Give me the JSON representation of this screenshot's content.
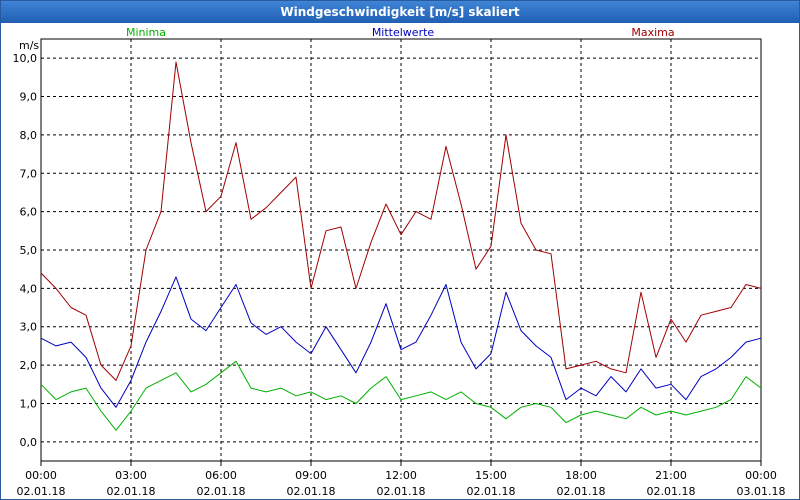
{
  "window": {
    "title": "Windgeschwindigkeit [m/s] skaliert"
  },
  "colors": {
    "minima": "#00b000",
    "mittelwerte": "#0000c0",
    "maxima": "#a00000",
    "grid": "#000000"
  },
  "chart_data": {
    "type": "line",
    "title": "Windgeschwindigkeit [m/s] skaliert",
    "ylabel": "m/s",
    "xlabel": "",
    "ylim": [
      -0.5,
      10.5
    ],
    "xlim": [
      0,
      24
    ],
    "grid": true,
    "legend": "top",
    "y_ticks": [
      "0,0",
      "1,0",
      "2,0",
      "3,0",
      "4,0",
      "5,0",
      "6,0",
      "7,0",
      "8,0",
      "9,0",
      "10,0"
    ],
    "x_ticks": [
      {
        "time": "00:00",
        "date": "02.01.18"
      },
      {
        "time": "03:00",
        "date": "02.01.18"
      },
      {
        "time": "06:00",
        "date": "02.01.18"
      },
      {
        "time": "09:00",
        "date": "02.01.18"
      },
      {
        "time": "12:00",
        "date": "02.01.18"
      },
      {
        "time": "15:00",
        "date": "02.01.18"
      },
      {
        "time": "18:00",
        "date": "02.01.18"
      },
      {
        "time": "21:00",
        "date": "02.01.18"
      },
      {
        "time": "00:00",
        "date": "03.01.18"
      }
    ],
    "x": [
      0.0,
      0.5,
      1.0,
      1.5,
      2.0,
      2.5,
      3.0,
      3.5,
      4.0,
      4.5,
      5.0,
      5.5,
      6.0,
      6.5,
      7.0,
      7.5,
      8.0,
      8.5,
      9.0,
      9.5,
      10.0,
      10.5,
      11.0,
      11.5,
      12.0,
      12.5,
      13.0,
      13.5,
      14.0,
      14.5,
      15.0,
      15.5,
      16.0,
      16.5,
      17.0,
      17.5,
      18.0,
      18.5,
      19.0,
      19.5,
      20.0,
      20.5,
      21.0,
      21.5,
      22.0,
      22.5,
      23.0,
      23.5,
      24.0
    ],
    "series": [
      {
        "name": "Minima",
        "values": [
          1.5,
          1.1,
          1.3,
          1.4,
          0.8,
          0.3,
          0.8,
          1.4,
          1.6,
          1.8,
          1.3,
          1.5,
          1.8,
          2.1,
          1.4,
          1.3,
          1.4,
          1.2,
          1.3,
          1.1,
          1.2,
          1.0,
          1.4,
          1.7,
          1.1,
          1.2,
          1.3,
          1.1,
          1.3,
          1.0,
          0.9,
          0.6,
          0.9,
          1.0,
          0.9,
          0.5,
          0.7,
          0.8,
          0.7,
          0.6,
          0.9,
          0.7,
          0.8,
          0.7,
          0.8,
          0.9,
          1.1,
          1.7,
          1.4
        ]
      },
      {
        "name": "Mittelwerte",
        "values": [
          2.7,
          2.5,
          2.6,
          2.2,
          1.4,
          0.9,
          1.6,
          2.6,
          3.4,
          4.3,
          3.2,
          2.9,
          3.5,
          4.1,
          3.1,
          2.8,
          3.0,
          2.6,
          2.3,
          3.0,
          2.4,
          1.8,
          2.6,
          3.6,
          2.4,
          2.6,
          3.3,
          4.1,
          2.6,
          1.9,
          2.3,
          3.9,
          2.9,
          2.5,
          2.2,
          1.1,
          1.4,
          1.2,
          1.7,
          1.3,
          1.9,
          1.4,
          1.5,
          1.1,
          1.7,
          1.9,
          2.2,
          2.6,
          2.7
        ]
      },
      {
        "name": "Maxima",
        "values": [
          4.4,
          4.0,
          3.5,
          3.3,
          2.0,
          1.6,
          2.5,
          5.0,
          6.0,
          9.9,
          7.8,
          6.0,
          6.4,
          7.8,
          5.8,
          6.1,
          6.5,
          6.9,
          4.0,
          5.5,
          5.6,
          4.0,
          5.2,
          6.2,
          5.4,
          6.0,
          5.8,
          7.7,
          6.2,
          4.5,
          5.1,
          8.0,
          5.7,
          5.0,
          4.9,
          1.9,
          2.0,
          2.1,
          1.9,
          1.8,
          3.9,
          2.2,
          3.2,
          2.6,
          3.3,
          3.4,
          3.5,
          4.1,
          4.0
        ]
      }
    ]
  }
}
